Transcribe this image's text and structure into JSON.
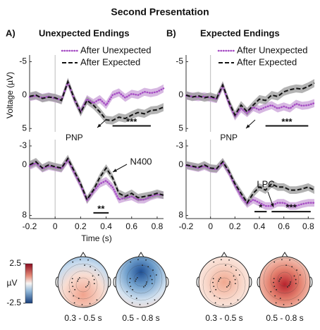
{
  "title": "Second Presentation",
  "topomaps": {
    "unit": "µV",
    "clim": [
      -2.5,
      2.5
    ],
    "cticks": [
      2.5,
      -2.5
    ],
    "maps": [
      {
        "label": "0.3 - 0.5 s"
      },
      {
        "label": "0.5 - 0.8 s"
      },
      {
        "label": "0.3 - 0.5 s"
      },
      {
        "label": "0.5 - 0.8 s"
      }
    ]
  },
  "chart_data": [
    {
      "type": "line",
      "panel_label": "A)",
      "title": "Unexpected Endings",
      "ylabel": "Voltage (µV)",
      "legend": true,
      "x": [
        -0.2,
        -0.15,
        -0.1,
        -0.05,
        0,
        0.05,
        0.1,
        0.15,
        0.2,
        0.25,
        0.3,
        0.35,
        0.4,
        0.45,
        0.5,
        0.55,
        0.6,
        0.65,
        0.7,
        0.75,
        0.8,
        0.85
      ],
      "xlim": [
        -0.2,
        0.85
      ],
      "ylim": [
        -6,
        5.5
      ],
      "y_reversed": true,
      "yticks": [
        -5,
        0,
        5
      ],
      "series": [
        {
          "name": "After Unexpected",
          "color": "#a64dc4",
          "band_color": "#c9a0d8",
          "dash": "dotted",
          "error": 0.6,
          "values": [
            0.3,
            0.1,
            0.4,
            0.2,
            0.5,
            0.7,
            -1.9,
            0.6,
            2.5,
            0.6,
            1.2,
            0.6,
            1.5,
            0,
            -0.4,
            0.4,
            -0.2,
            0,
            -0.5,
            -0.3,
            -0.5,
            -1
          ]
        },
        {
          "name": "After Expected",
          "color": "#111111",
          "band_color": "#9a9a9a",
          "dash": "dashed",
          "error": 0.6,
          "values": [
            0.2,
            0,
            0.5,
            0.3,
            0.4,
            0.8,
            -2,
            0.5,
            2.6,
            0.8,
            1.5,
            2.5,
            3.7,
            3.8,
            3.3,
            3.5,
            3,
            2.6,
            2.8,
            2.3,
            2.2,
            1.8
          ]
        }
      ],
      "significance": [
        {
          "label": "***",
          "x": [
            0.45,
            0.75
          ],
          "y": 4.6
        }
      ]
    },
    {
      "type": "line",
      "panel_label": "B)",
      "title": "Expected Endings",
      "legend": true,
      "x": [
        -0.2,
        -0.15,
        -0.1,
        -0.05,
        0,
        0.05,
        0.1,
        0.15,
        0.2,
        0.25,
        0.3,
        0.35,
        0.4,
        0.45,
        0.5,
        0.55,
        0.6,
        0.65,
        0.7,
        0.75,
        0.8,
        0.85
      ],
      "xlim": [
        -0.2,
        0.85
      ],
      "ylim": [
        -6,
        5.5
      ],
      "y_reversed": true,
      "yticks": [
        -5,
        0,
        5
      ],
      "series": [
        {
          "name": "After Unexpected",
          "color": "#a64dc4",
          "band_color": "#c9a0d8",
          "dash": "dotted",
          "error": 0.6,
          "values": [
            0.1,
            0.2,
            0.3,
            0.2,
            0.4,
            0.6,
            -1.4,
            1.2,
            3.2,
            2,
            2.7,
            1.8,
            2.2,
            1.8,
            1.5,
            2,
            1.7,
            2,
            1.3,
            1.6,
            1.5,
            1.2
          ]
        },
        {
          "name": "After Expected",
          "color": "#111111",
          "band_color": "#9a9a9a",
          "dash": "dashed",
          "error": 0.6,
          "values": [
            0,
            0.3,
            0.1,
            0.4,
            0.2,
            0.5,
            -1.5,
            1,
            3,
            1.5,
            2.5,
            1.5,
            0.6,
            0.8,
            0,
            0.2,
            -0.5,
            -0.8,
            -1,
            -0.9,
            -1.3,
            -1.8
          ]
        }
      ],
      "significance": [
        {
          "label": "***",
          "x": [
            0.45,
            0.8
          ],
          "y": 4.6
        }
      ]
    },
    {
      "type": "line",
      "component_label": "PNP",
      "annotation": "N400",
      "xlabel": "Time (s)",
      "x": [
        -0.2,
        -0.15,
        -0.1,
        -0.05,
        0,
        0.05,
        0.1,
        0.15,
        0.2,
        0.25,
        0.3,
        0.35,
        0.4,
        0.45,
        0.5,
        0.55,
        0.6,
        0.65,
        0.7,
        0.75,
        0.8,
        0.85
      ],
      "xlim": [
        -0.2,
        0.85
      ],
      "xticks": [
        -0.2,
        0,
        0.2,
        0.4,
        0.6,
        0.8
      ],
      "ylim": [
        -4,
        8.5
      ],
      "y_reversed": true,
      "yticks": [
        -3,
        0,
        8
      ],
      "series": [
        {
          "color": "#a64dc4",
          "band_color": "#c9a0d8",
          "dash": "dotted",
          "error": 0.6,
          "values": [
            0.2,
            -0.3,
            0.6,
            0.2,
            0.4,
            0.6,
            -0.8,
            1.2,
            3.2,
            5.6,
            4.2,
            3,
            2.5,
            3.5,
            5.5,
            5.2,
            5,
            5.5,
            5.5,
            5,
            4.7,
            4.8
          ]
        },
        {
          "color": "#111111",
          "band_color": "#9a9a9a",
          "dash": "dashed",
          "error": 0.6,
          "values": [
            0,
            -0.5,
            0.5,
            0,
            0.3,
            0.5,
            -1,
            1,
            3,
            5.5,
            4,
            2,
            0.5,
            2,
            4.5,
            5,
            4.5,
            5.2,
            5,
            4.8,
            4.5,
            4.8
          ]
        }
      ],
      "significance": [
        {
          "label": "**",
          "x": [
            0.3,
            0.42
          ],
          "y": 7.6
        }
      ]
    },
    {
      "type": "line",
      "component_label": "PNP",
      "annotation": "LPC",
      "x": [
        -0.2,
        -0.15,
        -0.1,
        -0.05,
        0,
        0.05,
        0.1,
        0.15,
        0.2,
        0.25,
        0.3,
        0.35,
        0.4,
        0.45,
        0.5,
        0.55,
        0.6,
        0.65,
        0.7,
        0.75,
        0.8,
        0.85
      ],
      "xlim": [
        -0.2,
        0.85
      ],
      "xticks": [
        -0.2,
        0,
        0.2,
        0.4,
        0.6,
        0.8
      ],
      "ylim": [
        -4,
        8.5
      ],
      "y_reversed": true,
      "yticks": [
        -3,
        0,
        8
      ],
      "series": [
        {
          "color": "#a64dc4",
          "band_color": "#c9a0d8",
          "dash": "dotted",
          "error": 0.6,
          "values": [
            0.1,
            0.3,
            0.5,
            0.2,
            0.6,
            0.7,
            -0.4,
            1.2,
            3.2,
            5,
            6.2,
            5.5,
            6,
            6.5,
            6.5,
            6,
            6,
            6.5,
            6.5,
            6.2,
            6,
            6
          ]
        },
        {
          "color": "#111111",
          "band_color": "#9a9a9a",
          "dash": "dashed",
          "error": 0.6,
          "values": [
            0,
            0.2,
            0.4,
            0,
            0.5,
            0.6,
            -0.5,
            1,
            3,
            4.5,
            6,
            4.5,
            3.5,
            4,
            3,
            3.5,
            3.5,
            4,
            4,
            3.8,
            3.5,
            4
          ]
        }
      ],
      "significance": [
        {
          "label": "*",
          "x": [
            0.36,
            0.46
          ],
          "y": 7.4
        },
        {
          "label": "***",
          "x": [
            0.5,
            0.82
          ],
          "y": 7.4
        }
      ]
    }
  ]
}
